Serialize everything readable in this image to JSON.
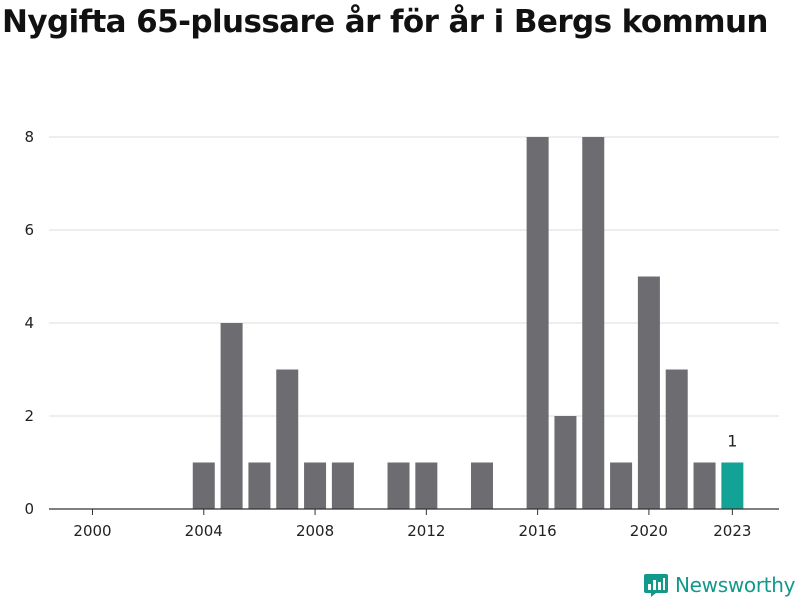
{
  "title": "Nygifta 65-plussare år för år i Bergs kommun",
  "brand": {
    "name": "Newsworthy",
    "icon": "newsworthy-logo-icon"
  },
  "chart_data": {
    "type": "bar",
    "title": "Nygifta 65-plussare år för år i Bergs kommun",
    "xlabel": "",
    "ylabel": "",
    "x": [
      2000,
      2001,
      2002,
      2003,
      2004,
      2005,
      2006,
      2007,
      2008,
      2009,
      2010,
      2011,
      2012,
      2013,
      2014,
      2015,
      2016,
      2017,
      2018,
      2019,
      2020,
      2021,
      2022,
      2023
    ],
    "values": [
      0,
      0,
      0,
      0,
      1,
      4,
      1,
      3,
      1,
      1,
      0,
      1,
      1,
      0,
      1,
      0,
      8,
      2,
      8,
      1,
      5,
      3,
      1,
      1
    ],
    "ylim": [
      0,
      8
    ],
    "yticks": [
      "0",
      "2",
      "4",
      "6",
      "8"
    ],
    "xticks": [
      "2000",
      "2004",
      "2008",
      "2012",
      "2016",
      "2020",
      "2023"
    ],
    "data_labels": [
      {
        "x": 2023,
        "label": "1"
      }
    ],
    "grid": true,
    "colors": {
      "bar": "#6d6c71",
      "highlight": "#13a396",
      "grid": "#dddddd",
      "axis": "#333333"
    },
    "highlight": [
      2023
    ]
  }
}
